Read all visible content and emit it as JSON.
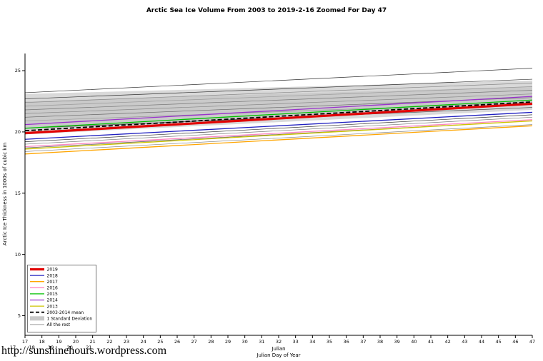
{
  "footer": {
    "url": "http://sunshinehours.wordpress.com"
  },
  "chart_data": {
    "type": "line",
    "title": "Arctic Sea Ice Volume From 2003 to 2019-2-16 Zoomed For Day 47",
    "ylabel": "Arctic Ice Thickness in 1000s of cubic km",
    "xlabel_line1": "Julian",
    "xlabel_line2": "Julian Day of Year",
    "xlim": [
      17,
      47
    ],
    "ylim": [
      3.4,
      26.4
    ],
    "x_ticks": [
      17,
      18,
      19,
      20,
      21,
      22,
      23,
      24,
      25,
      26,
      27,
      28,
      29,
      30,
      31,
      32,
      33,
      34,
      35,
      36,
      37,
      38,
      39,
      40,
      41,
      42,
      43,
      44,
      45,
      46,
      47
    ],
    "x_ticks_row2": [
      17,
      18,
      19,
      20,
      21
    ],
    "y_ticks": [
      5,
      10,
      15,
      20,
      25
    ],
    "grid": false,
    "legend_position": "bottom-left",
    "x": [
      17,
      47
    ],
    "bands": [
      {
        "name": "1 Standard Deviation outer",
        "color": "#d9d9d9",
        "upper": [
          23.1,
          24.2
        ],
        "lower": [
          19.8,
          21.8
        ]
      },
      {
        "name": "1 Standard Deviation inner",
        "color": "#cacaca",
        "upper": [
          22.5,
          23.7
        ],
        "lower": [
          20.2,
          22.2
        ]
      }
    ],
    "background_series": [
      {
        "name": "rest-1",
        "color": "#303030",
        "start": 23.2,
        "end": 25.2
      },
      {
        "name": "rest-2",
        "color": "#303030",
        "start": 22.7,
        "end": 24.3
      },
      {
        "name": "rest-3",
        "color": "#888888",
        "start": 22.4,
        "end": 24.0
      },
      {
        "name": "rest-4",
        "color": "#999999",
        "start": 22.1,
        "end": 23.7
      },
      {
        "name": "rest-5",
        "color": "#777777",
        "start": 21.8,
        "end": 23.4
      },
      {
        "name": "rest-6",
        "color": "#888888",
        "start": 21.5,
        "end": 23.1
      },
      {
        "name": "rest-7",
        "color": "#666666",
        "start": 21.2,
        "end": 22.8
      },
      {
        "name": "rest-8",
        "color": "#999999",
        "start": 20.9,
        "end": 22.4
      },
      {
        "name": "rest-9",
        "color": "#444444",
        "start": 20.3,
        "end": 22.0
      },
      {
        "name": "rest-10",
        "color": "#333333",
        "start": 19.2,
        "end": 21.4
      },
      {
        "name": "rest-11",
        "color": "#777777",
        "start": 19.0,
        "end": 21.2
      },
      {
        "name": "rest-12",
        "color": "#555555",
        "start": 18.7,
        "end": 20.9
      },
      {
        "name": "rest-13",
        "color": "#888888",
        "start": 18.4,
        "end": 20.6
      }
    ],
    "series": [
      {
        "name": "2018",
        "color": "#2020c0",
        "width": 1.3,
        "values": [
          19.4,
          21.6
        ]
      },
      {
        "name": "2017",
        "color": "#ffa500",
        "width": 1.3,
        "values": [
          18.2,
          20.5
        ]
      },
      {
        "name": "2016",
        "color": "#ff85c2",
        "width": 1.3,
        "values": [
          18.8,
          21.0
        ]
      },
      {
        "name": "2015",
        "color": "#00c000",
        "width": 1.3,
        "values": [
          20.3,
          22.6
        ]
      },
      {
        "name": "2014",
        "color": "#9932cc",
        "width": 1.3,
        "values": [
          20.6,
          22.9
        ]
      },
      {
        "name": "2013",
        "color": "#cdc400",
        "width": 1.3,
        "values": [
          18.6,
          20.9
        ]
      },
      {
        "name": "2019",
        "color": "#e10000",
        "width": 3.2,
        "values": [
          19.9,
          22.3
        ]
      },
      {
        "name": "2003-2014 mean",
        "color": "#000000",
        "width": 1.8,
        "dash": "6 3",
        "values": [
          20.1,
          22.45
        ]
      }
    ],
    "legend": [
      {
        "label": "2019",
        "type": "line",
        "color": "#e10000",
        "width": 3.2
      },
      {
        "label": "2018",
        "type": "line",
        "color": "#2020c0",
        "width": 1.3
      },
      {
        "label": "2017",
        "type": "line",
        "color": "#ffa500",
        "width": 1.3
      },
      {
        "label": "2016",
        "type": "line",
        "color": "#ff85c2",
        "width": 1.3
      },
      {
        "label": "2015",
        "type": "line",
        "color": "#00c000",
        "width": 1.3
      },
      {
        "label": "2014",
        "type": "line",
        "color": "#9932cc",
        "width": 1.3
      },
      {
        "label": "2013",
        "type": "line",
        "color": "#cdc400",
        "width": 1.3
      },
      {
        "label": "2003-2014 mean",
        "type": "dashed",
        "color": "#000000",
        "width": 1.8
      },
      {
        "label": "1 Standard Deviation",
        "type": "band",
        "color": "#c8c8c8"
      },
      {
        "label": "All the rest",
        "type": "line",
        "color": "#7d7d7d",
        "width": 0.8
      }
    ]
  }
}
